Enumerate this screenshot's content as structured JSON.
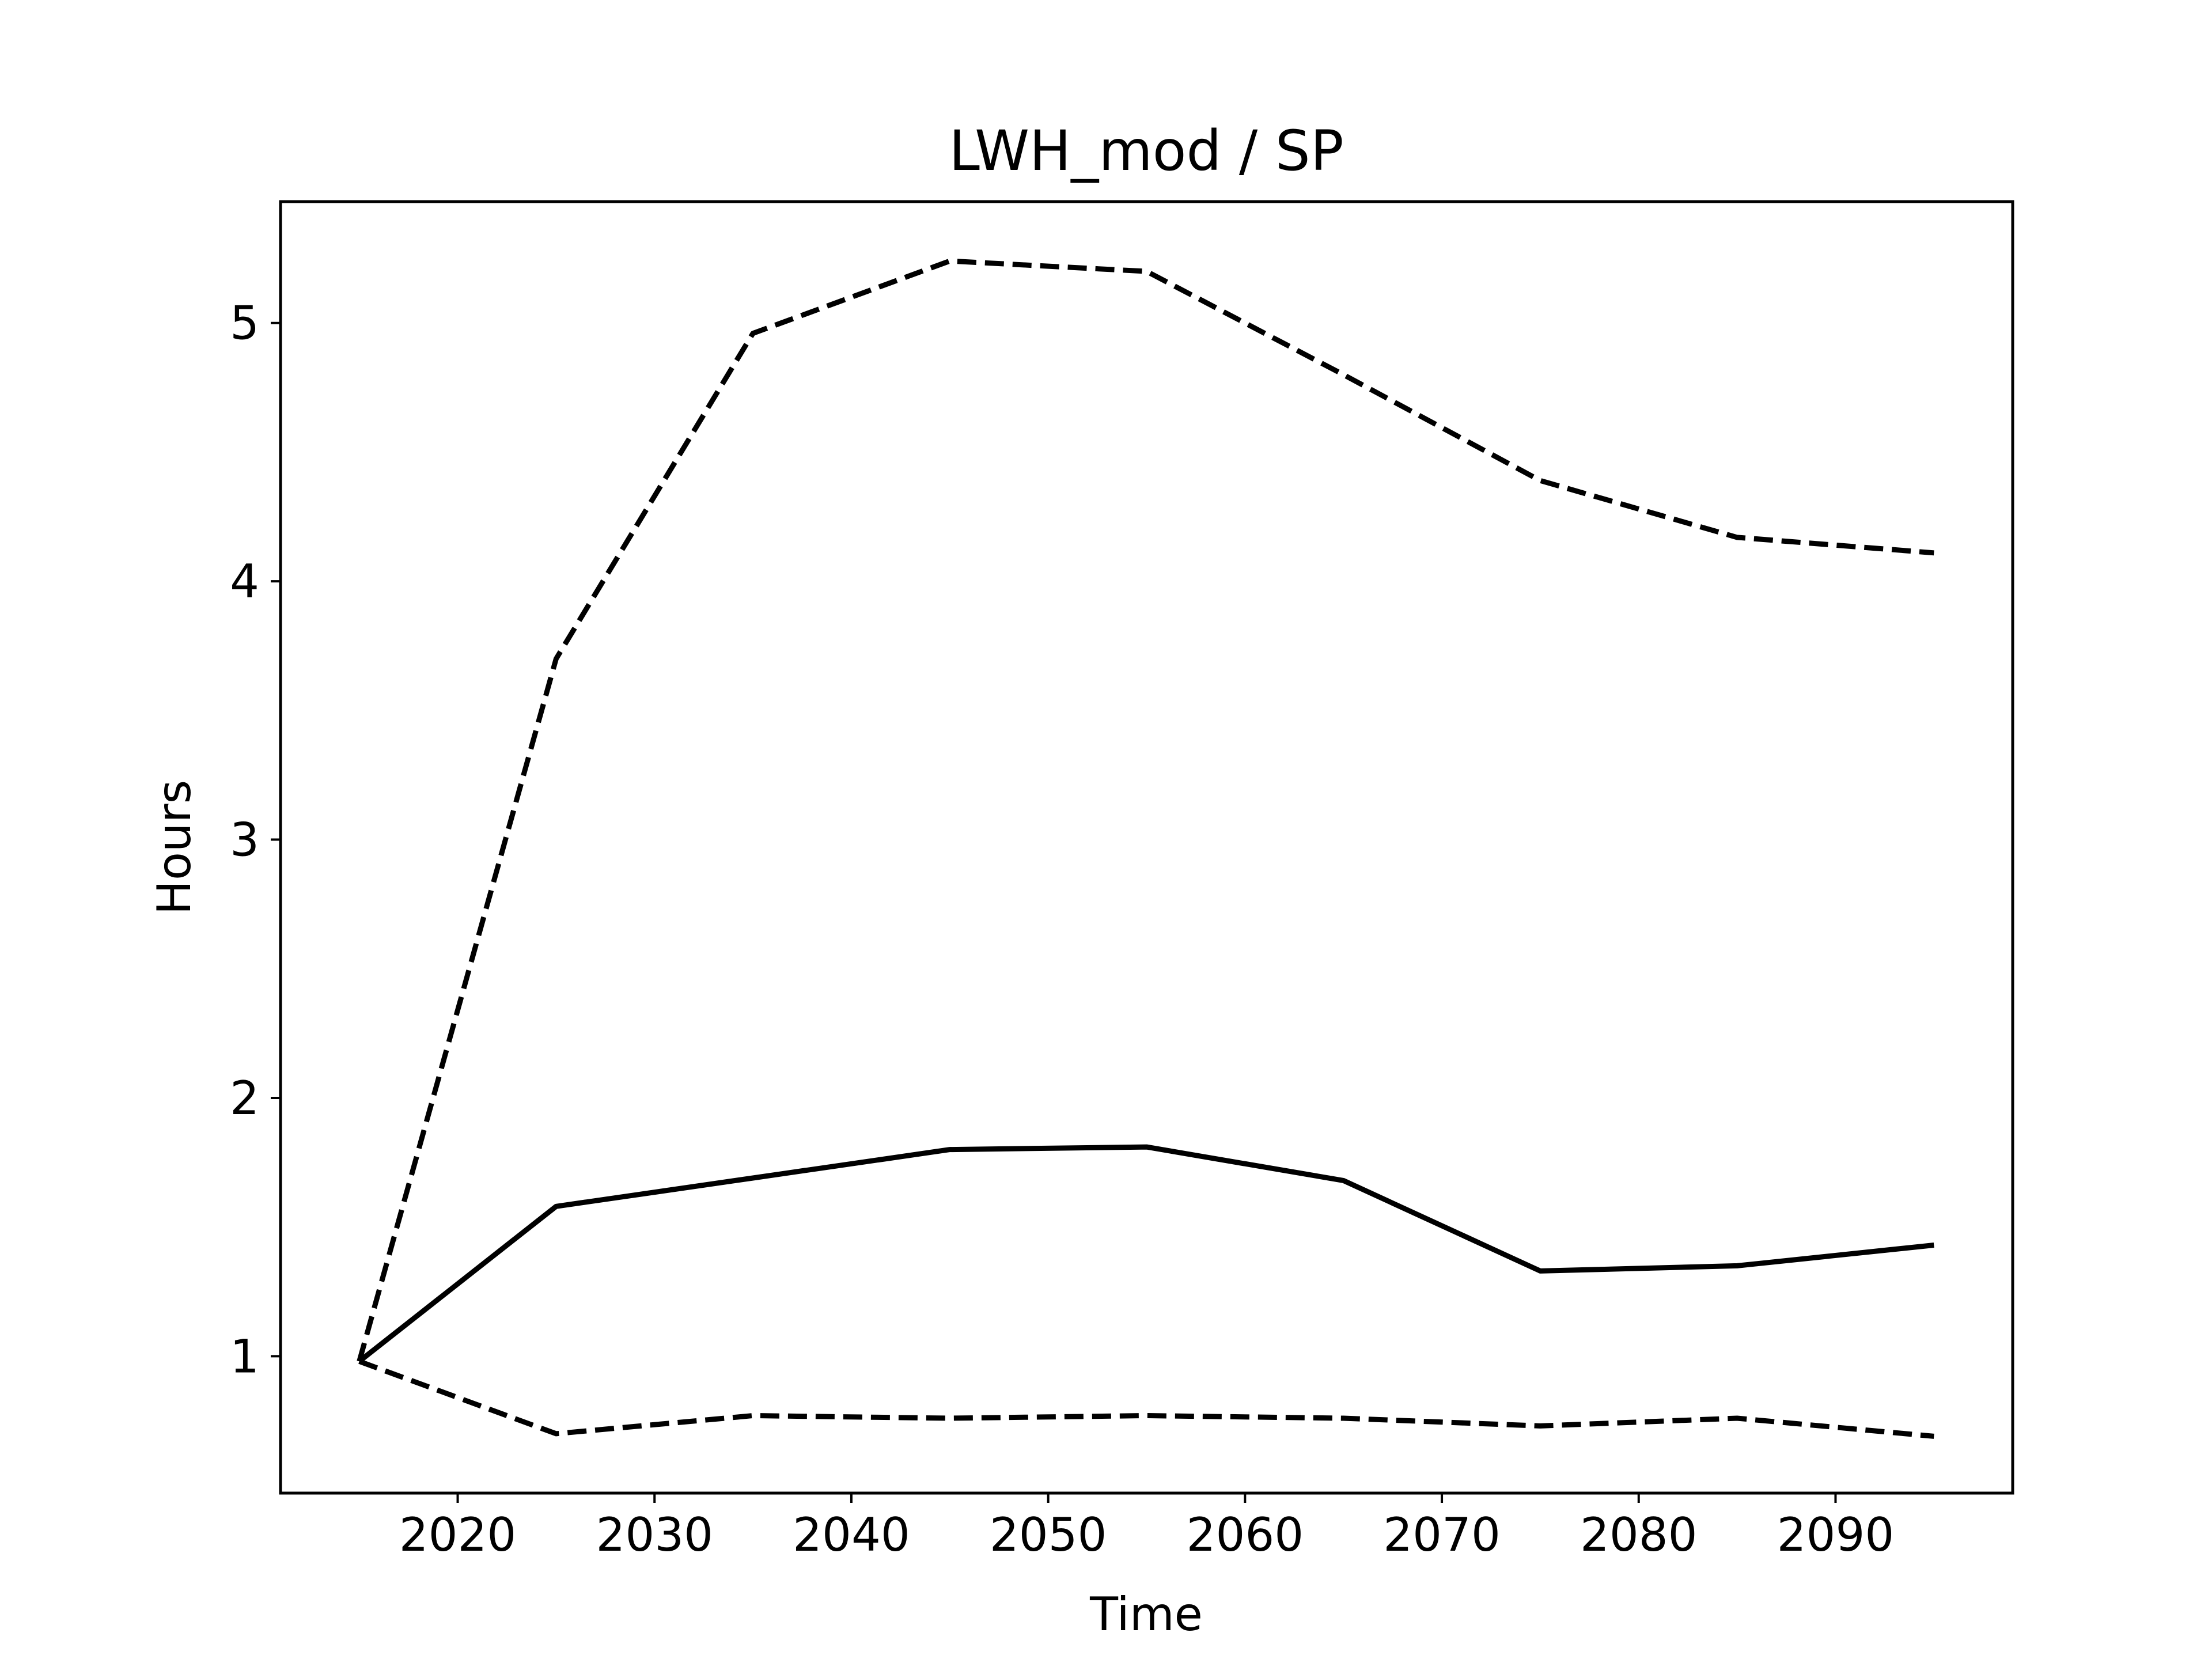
{
  "chart_data": {
    "type": "line",
    "title": "LWH_mod / SP",
    "xlabel": "Time",
    "ylabel": "Hours",
    "x": [
      2015,
      2025,
      2035,
      2045,
      2055,
      2065,
      2075,
      2085,
      2095
    ],
    "series": [
      {
        "style": "solid",
        "color": "#000000",
        "values": [
          0.98,
          1.58,
          1.69,
          1.8,
          1.81,
          1.68,
          1.33,
          1.35,
          1.43
        ]
      },
      {
        "style": "dashed",
        "color": "#000000",
        "values": [
          0.98,
          3.7,
          4.96,
          5.24,
          5.2,
          4.8,
          4.39,
          4.17,
          4.11
        ]
      },
      {
        "style": "dashed",
        "color": "#000000",
        "values": [
          0.98,
          0.7,
          0.77,
          0.76,
          0.77,
          0.76,
          0.73,
          0.76,
          0.69
        ]
      }
    ],
    "xlim": [
      2011,
      2099
    ],
    "ylim": [
      0.47,
      5.47
    ],
    "xticks": [
      "2020",
      "2030",
      "2040",
      "2050",
      "2060",
      "2070",
      "2080",
      "2090"
    ],
    "yticks": [
      "1",
      "2",
      "3",
      "4",
      "5"
    ],
    "grid": false,
    "legend": false
  }
}
